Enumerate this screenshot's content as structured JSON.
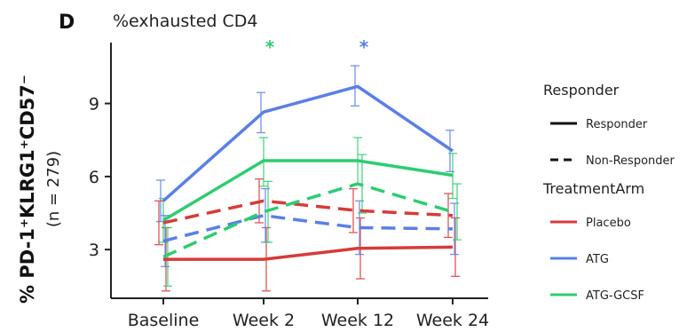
{
  "chart_data": {
    "type": "line",
    "panel_label": "D",
    "title": "%exhausted CD4",
    "ylabel": "% PD-1⁺KLRG1⁺CD57⁻",
    "ylabel_sub": "(n = 279)",
    "categories": [
      "Baseline",
      "Week 2",
      "Week 12",
      "Week 24"
    ],
    "yticks": [
      3,
      6,
      9
    ],
    "ylim": [
      1.0,
      11.5
    ],
    "series": [
      {
        "name": "ATG",
        "group": "Responder",
        "color": "#5b7fe6",
        "dash": "solid",
        "values": [
          5.0,
          8.65,
          9.7,
          7.05
        ],
        "err_low": [
          4.15,
          7.8,
          8.9,
          6.2
        ],
        "err_high": [
          5.85,
          9.45,
          10.55,
          7.9
        ]
      },
      {
        "name": "ATG-GCSF",
        "group": "Responder",
        "color": "#2ecc71",
        "dash": "solid",
        "values": [
          4.2,
          6.65,
          6.65,
          6.05
        ],
        "err_low": [
          3.3,
          5.6,
          5.7,
          5.1
        ],
        "err_high": [
          5.1,
          7.6,
          7.6,
          6.95
        ]
      },
      {
        "name": "Placebo",
        "group": "Responder",
        "color": "#d63b3b",
        "dash": "solid",
        "values": [
          2.6,
          2.6,
          3.05,
          3.1
        ],
        "err_low": [
          1.3,
          1.3,
          1.8,
          1.9
        ],
        "err_high": [
          3.9,
          3.9,
          4.3,
          4.3
        ]
      },
      {
        "name": "Placebo",
        "group": "Non-Responder",
        "color": "#d63b3b",
        "dash": "dashed",
        "values": [
          4.1,
          5.0,
          4.6,
          4.4
        ],
        "err_low": [
          3.2,
          4.1,
          3.7,
          3.5
        ],
        "err_high": [
          5.0,
          5.9,
          5.5,
          5.3
        ]
      },
      {
        "name": "ATG",
        "group": "Non-Responder",
        "color": "#5b7fe6",
        "dash": "dashed",
        "values": [
          3.35,
          4.4,
          3.9,
          3.85
        ],
        "err_low": [
          2.3,
          3.3,
          2.8,
          2.8
        ],
        "err_high": [
          4.4,
          5.5,
          5.0,
          4.9
        ]
      },
      {
        "name": "ATG-GCSF",
        "group": "Non-Responder",
        "color": "#2ecc71",
        "dash": "dashed",
        "values": [
          2.7,
          4.55,
          5.7,
          4.55
        ],
        "err_low": [
          1.5,
          3.3,
          4.5,
          3.4
        ],
        "err_high": [
          3.9,
          5.8,
          6.9,
          5.7
        ]
      }
    ],
    "significance": [
      {
        "category": "Week 2",
        "symbol": "*",
        "color": "#2ecc71"
      },
      {
        "category": "Week 12",
        "symbol": "*",
        "color": "#5b7fe6"
      }
    ],
    "legend": {
      "placement": "right",
      "line_title": "Responder",
      "line_items": [
        {
          "label": "Responder",
          "dash": "solid"
        },
        {
          "label": "Non-Responder",
          "dash": "dashed"
        }
      ],
      "color_title": "TreatmentArm",
      "color_items": [
        {
          "label": "Placebo",
          "color": "#d63b3b"
        },
        {
          "label": "ATG",
          "color": "#5b7fe6"
        },
        {
          "label": "ATG-GCSF",
          "color": "#2ecc71"
        }
      ]
    }
  }
}
